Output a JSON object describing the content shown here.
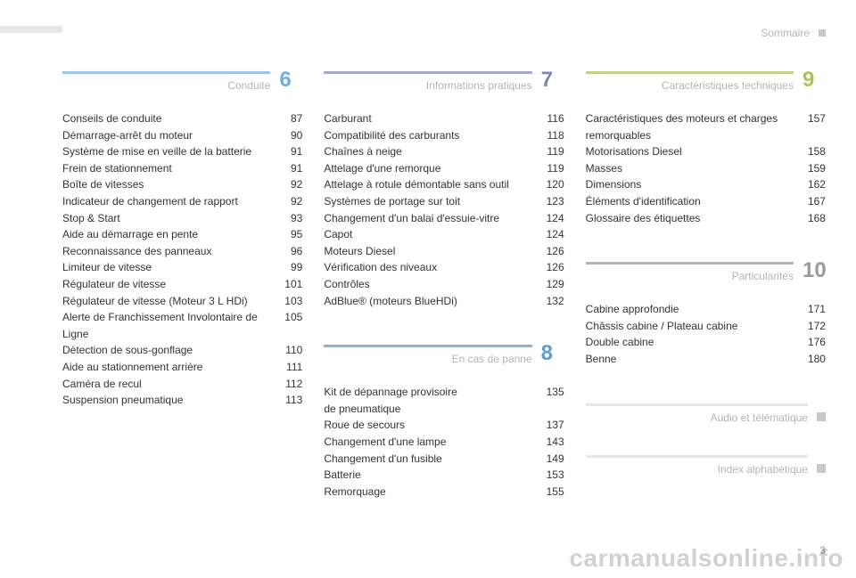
{
  "header": {
    "label": "Sommaire"
  },
  "colors": {
    "text": "#333333",
    "muted": "#b4b4b4",
    "gray_rule": "#e7e7e7",
    "gray_square": "#c8c8c8",
    "s6": "#9bc5e3",
    "s6_num": "#6eb0dc",
    "s7": "#a3a8c9",
    "s7_num": "#7d85b5",
    "s8": "#8bb5d6",
    "s8_num": "#5f9ccc",
    "s9": "#c3d086",
    "s9_num": "#aebf56",
    "s10": "#b4b4b4",
    "s10_num": "#9a9a9a"
  },
  "page_number": "3",
  "watermark": "carmanualsonline.info",
  "sections": {
    "s6": {
      "number": "6",
      "title": "Conduite",
      "entries": [
        {
          "label": "Conseils de conduite",
          "page": "87"
        },
        {
          "label": "Démarrage-arrêt du moteur",
          "page": "90"
        },
        {
          "label": "Système de mise en veille de la batterie",
          "page": "91"
        },
        {
          "label": "Frein de stationnement",
          "page": "91"
        },
        {
          "label": "Boîte de vitesses",
          "page": "92"
        },
        {
          "label": "Indicateur de changement de rapport",
          "page": "92"
        },
        {
          "label": "Stop & Start",
          "page": "93"
        },
        {
          "label": "Aide au démarrage en pente",
          "page": "95"
        },
        {
          "label": "Reconnaissance des panneaux",
          "page": "96"
        },
        {
          "label": "Limiteur de vitesse",
          "page": "99"
        },
        {
          "label": "Régulateur de vitesse",
          "page": "101"
        },
        {
          "label": "Régulateur de vitesse (Moteur 3 L HDi)",
          "page": "103"
        },
        {
          "label": "Alerte de Franchissement Involontaire de Ligne",
          "page": "105"
        },
        {
          "label": "Détection de sous-gonflage",
          "page": "110"
        },
        {
          "label": "Aide au stationnement arrière",
          "page": "111"
        },
        {
          "label": "Caméra de recul",
          "page": "112"
        },
        {
          "label": "Suspension pneumatique",
          "page": "113"
        }
      ]
    },
    "s7": {
      "number": "7",
      "title": "Informations pratiques",
      "entries": [
        {
          "label": "Carburant",
          "page": "116"
        },
        {
          "label": "Compatibilité des carburants",
          "page": "118"
        },
        {
          "label": "Chaînes à neige",
          "page": "119"
        },
        {
          "label": "Attelage d'une remorque",
          "page": "119"
        },
        {
          "label": "Attelage à rotule démontable sans outil",
          "page": "120"
        },
        {
          "label": "Systèmes de portage sur toit",
          "page": "123"
        },
        {
          "label": "Changement d'un balai d'essuie-vitre",
          "page": "124"
        },
        {
          "label": "Capot",
          "page": "124"
        },
        {
          "label": "Moteurs Diesel",
          "page": "126"
        },
        {
          "label": "Vérification des niveaux",
          "page": "126"
        },
        {
          "label": "Contrôles",
          "page": "129"
        },
        {
          "label": "AdBlue® (moteurs BlueHDi)",
          "page": "132"
        }
      ]
    },
    "s8": {
      "number": "8",
      "title": "En cas de panne",
      "entries": [
        {
          "label": "Kit de dépannage provisoire de pneumatique",
          "page": "135"
        },
        {
          "label": "Roue de secours",
          "page": "137"
        },
        {
          "label": "Changement d'une lampe",
          "page": "143"
        },
        {
          "label": "Changement d'un fusible",
          "page": "149"
        },
        {
          "label": "Batterie",
          "page": "153"
        },
        {
          "label": "Remorquage",
          "page": "155"
        }
      ]
    },
    "s9": {
      "number": "9",
      "title": "Caractéristiques techniques",
      "entries": [
        {
          "label": "Caractéristiques des moteurs et charges remorquables",
          "page": "157"
        },
        {
          "label": "Motorisations Diesel",
          "page": "158"
        },
        {
          "label": "Masses",
          "page": "159"
        },
        {
          "label": "Dimensions",
          "page": "162"
        },
        {
          "label": "Éléments d'identification",
          "page": "167"
        },
        {
          "label": "Glossaire des étiquettes",
          "page": "168"
        }
      ]
    },
    "s10": {
      "number": "10",
      "title": "Particularités",
      "entries": [
        {
          "label": "Cabine approfondie",
          "page": "171"
        },
        {
          "label": "Châssis cabine / Plateau cabine",
          "page": "172"
        },
        {
          "label": "Double cabine",
          "page": "176"
        },
        {
          "label": "Benne",
          "page": "180"
        }
      ]
    },
    "s_audio": {
      "title": "Audio et télématique"
    },
    "s_index": {
      "title": "Index alphabétique"
    }
  }
}
